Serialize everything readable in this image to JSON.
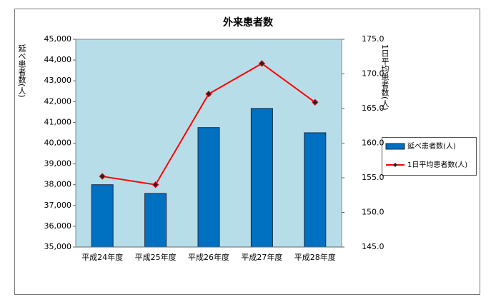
{
  "chart_data": {
    "type": "bar",
    "title": "外来患者数",
    "ylabel": "延べ患者数(人)",
    "y2label": "1日平均患者数(人)",
    "categories": [
      "平成24年度",
      "平成25年度",
      "平成26年度",
      "平成27年度",
      "平成28年度"
    ],
    "series": [
      {
        "name": "延べ患者数(人)",
        "type": "bar",
        "color": "#0070c0",
        "values": [
          38000,
          37580,
          40750,
          41670,
          40500
        ]
      },
      {
        "name": "1日平均患者数(人)",
        "type": "line",
        "axis": "y2",
        "color": "#ff0000",
        "values": [
          155.2,
          154.0,
          167.1,
          171.5,
          165.9
        ]
      }
    ],
    "ylim": [
      35000,
      45000
    ],
    "yticks": [
      {
        "value": 35000,
        "label": "35,000"
      },
      {
        "value": 36000,
        "label": "36,000"
      },
      {
        "value": 37000,
        "label": "37,000"
      },
      {
        "value": 38000,
        "label": "38,000"
      },
      {
        "value": 39000,
        "label": "39,000"
      },
      {
        "value": 40000,
        "label": "40,000"
      },
      {
        "value": 41000,
        "label": "41,000"
      },
      {
        "value": 42000,
        "label": "42,000"
      },
      {
        "value": 43000,
        "label": "43,000"
      },
      {
        "value": 44000,
        "label": "44,000"
      },
      {
        "value": 45000,
        "label": "45,000"
      }
    ],
    "y2lim": [
      145,
      175
    ],
    "y2ticks": [
      {
        "value": 145,
        "label": "145.0"
      },
      {
        "value": 150,
        "label": "150.0"
      },
      {
        "value": 155,
        "label": "155.0"
      },
      {
        "value": 160,
        "label": "160.0"
      },
      {
        "value": 165,
        "label": "165.0"
      },
      {
        "value": 170,
        "label": "170.0"
      },
      {
        "value": 175,
        "label": "175.0"
      }
    ],
    "grid": false,
    "legend": "right"
  }
}
